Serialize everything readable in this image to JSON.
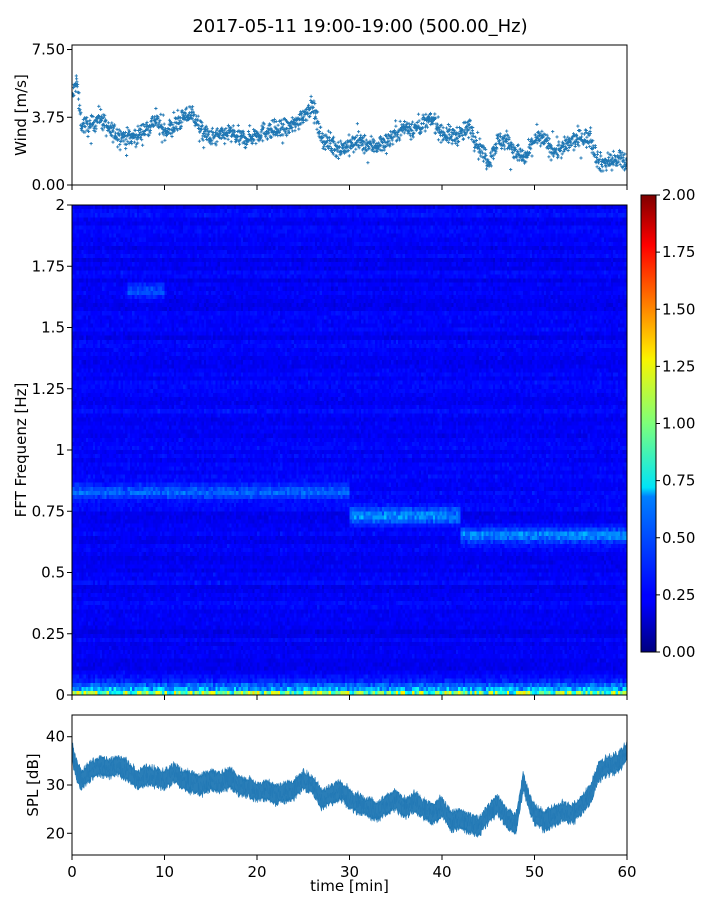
{
  "figure": {
    "title": "2017-05-11 19:00-19:00 (500.00_Hz)"
  },
  "chart_data": [
    {
      "type": "scatter",
      "name": "wind-panel",
      "ylabel": "Wind [m/s]",
      "xlim": [
        0,
        60
      ],
      "ylim": [
        0,
        7.75
      ],
      "yticks": [
        "0.00",
        "3.75",
        "7.50"
      ],
      "ytick_values": [
        0,
        3.75,
        7.5
      ],
      "color": "#1f77b4",
      "marker": "+",
      "trend": [
        [
          0,
          4.8
        ],
        [
          0.5,
          5.8
        ],
        [
          1,
          3.4
        ],
        [
          2,
          3.2
        ],
        [
          3,
          3.8
        ],
        [
          4,
          3.0
        ],
        [
          5,
          2.8
        ],
        [
          6,
          2.6
        ],
        [
          7,
          2.7
        ],
        [
          8,
          3.1
        ],
        [
          9,
          3.6
        ],
        [
          10,
          3.0
        ],
        [
          11,
          3.2
        ],
        [
          12,
          3.7
        ],
        [
          13,
          4.0
        ],
        [
          14,
          3.0
        ],
        [
          15,
          2.6
        ],
        [
          16,
          2.7
        ],
        [
          17,
          2.9
        ],
        [
          18,
          2.6
        ],
        [
          19,
          2.6
        ],
        [
          20,
          2.8
        ],
        [
          21,
          3.0
        ],
        [
          22,
          3.0
        ],
        [
          23,
          3.1
        ],
        [
          24,
          3.3
        ],
        [
          25,
          3.9
        ],
        [
          26,
          4.4
        ],
        [
          27,
          2.6
        ],
        [
          28,
          2.2
        ],
        [
          29,
          2.0
        ],
        [
          30,
          2.2
        ],
        [
          31,
          2.4
        ],
        [
          32,
          2.2
        ],
        [
          33,
          2.2
        ],
        [
          34,
          2.4
        ],
        [
          35,
          2.9
        ],
        [
          36,
          3.2
        ],
        [
          37,
          3.1
        ],
        [
          38,
          3.4
        ],
        [
          39,
          3.6
        ],
        [
          40,
          2.9
        ],
        [
          41,
          2.7
        ],
        [
          42,
          2.8
        ],
        [
          43,
          3.2
        ],
        [
          44,
          2.2
        ],
        [
          45,
          1.3
        ],
        [
          46,
          2.4
        ],
        [
          47,
          2.5
        ],
        [
          48,
          1.8
        ],
        [
          49,
          1.4
        ],
        [
          50,
          2.6
        ],
        [
          51,
          2.5
        ],
        [
          52,
          1.9
        ],
        [
          53,
          2.0
        ],
        [
          54,
          2.4
        ],
        [
          55,
          2.6
        ],
        [
          56,
          2.6
        ],
        [
          57,
          1.2
        ],
        [
          58,
          1.3
        ],
        [
          59,
          1.4
        ],
        [
          60,
          1.2
        ]
      ],
      "spread": 0.55,
      "n_points": 1800
    },
    {
      "type": "heatmap",
      "name": "spectrogram-panel",
      "ylabel": "FFT Frequenz [Hz]",
      "xlim": [
        0,
        60
      ],
      "ylim": [
        0,
        2
      ],
      "yticks": [
        "0",
        "0.25",
        "0.5",
        "0.75",
        "1",
        "1.25",
        "1.5",
        "1.75",
        "2"
      ],
      "ytick_values": [
        0,
        0.25,
        0.5,
        0.75,
        1,
        1.25,
        1.5,
        1.75,
        2
      ],
      "colormap": "jet",
      "color_range": [
        0,
        2
      ],
      "colorbar_ticks": [
        "0.00",
        "0.25",
        "0.50",
        "0.75",
        "1.00",
        "1.25",
        "1.50",
        "1.75",
        "2.00"
      ],
      "colorbar_tick_values": [
        0,
        0.25,
        0.5,
        0.75,
        1,
        1.25,
        1.5,
        1.75,
        2
      ],
      "n_time_bins": 240,
      "n_freq_bins": 120,
      "typical_level": 0.24,
      "low_freq_level": 1.3,
      "bands": [
        {
          "t0": 0,
          "t1": 30,
          "freq": 0.83,
          "level": 0.45
        },
        {
          "t0": 30,
          "t1": 42,
          "freq": 0.73,
          "level": 0.6
        },
        {
          "t0": 42,
          "t1": 60,
          "freq": 0.65,
          "level": 0.55
        },
        {
          "t0": 6,
          "t1": 10,
          "freq": 1.65,
          "level": 0.42
        }
      ]
    },
    {
      "type": "line",
      "name": "spl-panel",
      "xlabel": "time [min]",
      "ylabel": "SPL [dB]",
      "xlim": [
        0,
        60
      ],
      "ylim": [
        15.5,
        44.5
      ],
      "xticks": [
        "0",
        "10",
        "20",
        "30",
        "40",
        "50",
        "60"
      ],
      "xtick_values": [
        0,
        10,
        20,
        30,
        40,
        50,
        60
      ],
      "yticks": [
        "20",
        "30",
        "40"
      ],
      "ytick_values": [
        20,
        30,
        40
      ],
      "color": "#1f77b4",
      "trend": [
        [
          0,
          37
        ],
        [
          0.5,
          33
        ],
        [
          1,
          31
        ],
        [
          2,
          33
        ],
        [
          3,
          34
        ],
        [
          4,
          33.5
        ],
        [
          5,
          34
        ],
        [
          6,
          33
        ],
        [
          7,
          31
        ],
        [
          8,
          32
        ],
        [
          9,
          31.5
        ],
        [
          10,
          31
        ],
        [
          11,
          32.5
        ],
        [
          12,
          31
        ],
        [
          13,
          30.5
        ],
        [
          14,
          30
        ],
        [
          15,
          31
        ],
        [
          16,
          30.5
        ],
        [
          17,
          31.5
        ],
        [
          18,
          30
        ],
        [
          19,
          29.5
        ],
        [
          20,
          28.5
        ],
        [
          21,
          29
        ],
        [
          22,
          28
        ],
        [
          23,
          28.5
        ],
        [
          24,
          29
        ],
        [
          25,
          31
        ],
        [
          26,
          30
        ],
        [
          27,
          27
        ],
        [
          28,
          28
        ],
        [
          29,
          29
        ],
        [
          30,
          27
        ],
        [
          31,
          26
        ],
        [
          32,
          25.5
        ],
        [
          33,
          24.5
        ],
        [
          34,
          26
        ],
        [
          35,
          27
        ],
        [
          36,
          25
        ],
        [
          37,
          26.5
        ],
        [
          38,
          25
        ],
        [
          39,
          24
        ],
        [
          40,
          25.5
        ],
        [
          41,
          22.5
        ],
        [
          42,
          23
        ],
        [
          43,
          22
        ],
        [
          44,
          21.5
        ],
        [
          45,
          24
        ],
        [
          46,
          26
        ],
        [
          47,
          23
        ],
        [
          48,
          22
        ],
        [
          48.8,
          31
        ],
        [
          49.5,
          26
        ],
        [
          50,
          24
        ],
        [
          51,
          22.5
        ],
        [
          52,
          23.5
        ],
        [
          53,
          24.5
        ],
        [
          54,
          24
        ],
        [
          55,
          25.5
        ],
        [
          56,
          28
        ],
        [
          57,
          33
        ],
        [
          58,
          34
        ],
        [
          59,
          34.5
        ],
        [
          60,
          37
        ]
      ],
      "band_halfwidth": 1.8
    }
  ]
}
